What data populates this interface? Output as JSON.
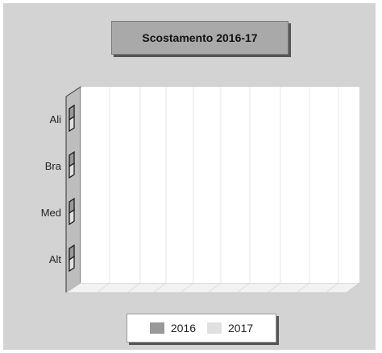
{
  "chart_data": {
    "type": "bar",
    "orientation": "horizontal",
    "title": "Scostamento 2016-17",
    "categories": [
      "Ali",
      "Bra",
      "Med",
      "Alt"
    ],
    "series": [
      {
        "name": "2016",
        "values": [
          0,
          0,
          0,
          0
        ],
        "color": "#999999"
      },
      {
        "name": "2017",
        "values": [
          0,
          0,
          0,
          0
        ],
        "color": "#e0e0e0"
      }
    ],
    "xlabel": "",
    "ylabel": "",
    "grid": true,
    "legend_position": "bottom"
  }
}
